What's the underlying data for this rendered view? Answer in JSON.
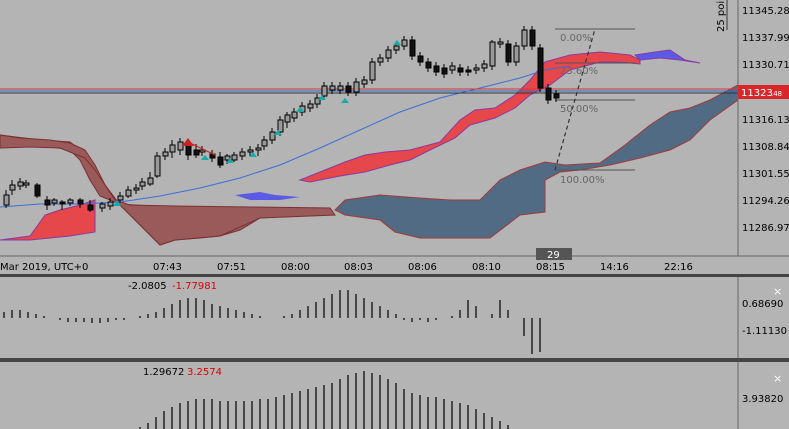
{
  "main_chart": {
    "price_labels": [
      "11345.28",
      "11337.99",
      "11330.71",
      "11316.13",
      "11308.84",
      "11301.55",
      "11294.26",
      "11286.97"
    ],
    "current_price_main": "11323",
    "current_price_frac": ".48",
    "range_label": "25 poi",
    "time_labels": [
      "Mar 2019, UTC+0",
      "07:43",
      "07:51",
      "08:00",
      "08:03",
      "08:06",
      "08:10",
      "08:15",
      "14:16",
      "22:16"
    ],
    "time_marker": "29",
    "fibo_levels": [
      "0.00%",
      "23.60%",
      "50.00%",
      "100.00%"
    ],
    "colors": {
      "bull_cloud": "#e6474b",
      "bear_cloud": "#526b84",
      "cloud_red_dark": "#a45454",
      "cloud_purple": "#5a5ae6"
    }
  },
  "indicator1": {
    "value_a": "-2.0805",
    "value_b": "-1.77981",
    "scale_labels": [
      "0.68690",
      "-1.11130"
    ],
    "close_label": "×"
  },
  "indicator2": {
    "value_a": "1.29672",
    "value_b": "3.2574",
    "scale_labels": [
      "3.93820"
    ],
    "close_label": "×"
  }
}
